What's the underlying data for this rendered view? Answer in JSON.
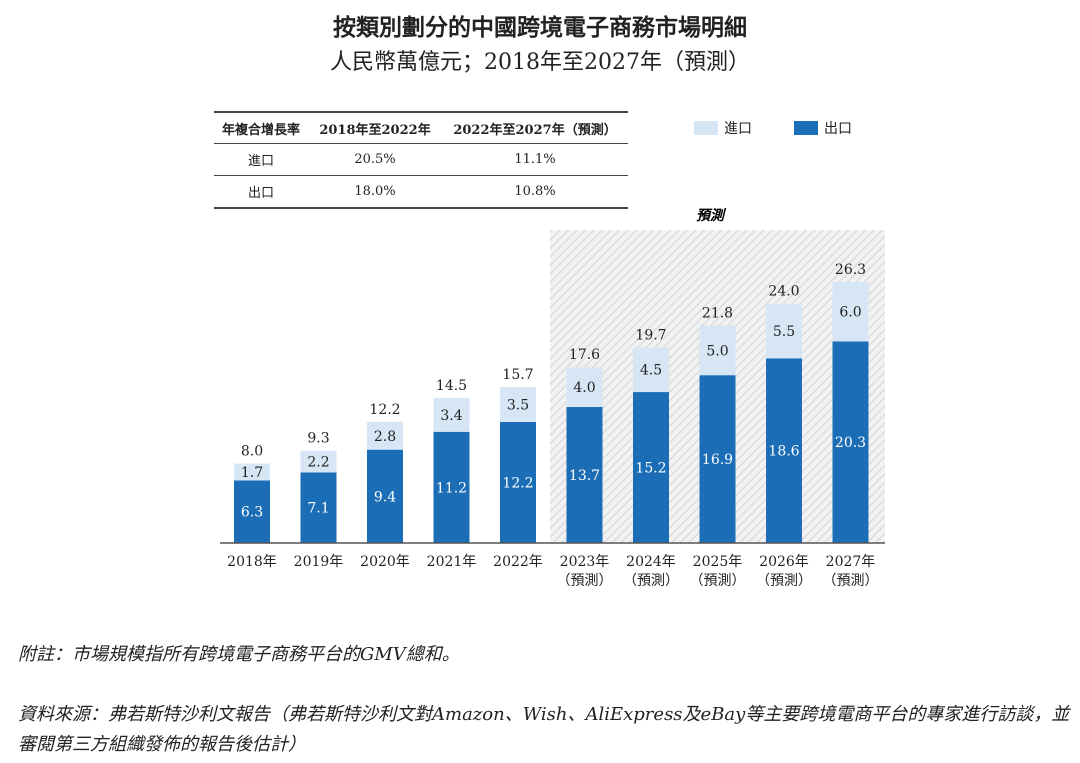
{
  "chart_data": {
    "type": "bar",
    "stacked": true,
    "title": "按類別劃分的中國跨境電子商務市場明細",
    "subtitle": "人民幣萬億元；2018年至2027年（預測）",
    "categories": [
      "2018年",
      "2019年",
      "2020年",
      "2021年",
      "2022年",
      "2023年",
      "2024年",
      "2025年",
      "2026年",
      "2027年"
    ],
    "forecast_tags": [
      "",
      "",
      "",
      "",
      "",
      "（預測）",
      "（預測）",
      "（預測）",
      "（預測）",
      "（預測）"
    ],
    "forecast_label": "預測",
    "series": [
      {
        "name": "出口",
        "color": "#1b6db5",
        "values": [
          6.3,
          7.1,
          9.4,
          11.2,
          12.2,
          13.7,
          15.2,
          16.9,
          18.6,
          20.3
        ]
      },
      {
        "name": "進口",
        "color": "#d7e6f4",
        "values": [
          1.7,
          2.2,
          2.8,
          3.4,
          3.5,
          4.0,
          4.5,
          5.0,
          5.5,
          6.0
        ]
      }
    ],
    "totals": [
      "8.0",
      "9.3",
      "12.2",
      "14.5",
      "15.7",
      "17.6",
      "19.7",
      "21.8",
      "24.0",
      "26.3"
    ],
    "cagr_table": {
      "headers": [
        "年複合增長率",
        "2018年至2022年",
        "2022年至2027年（預測）"
      ],
      "rows": [
        [
          "進口",
          "20.5%",
          "11.1%"
        ],
        [
          "出口",
          "18.0%",
          "10.8%"
        ]
      ]
    },
    "legend": [
      {
        "label": "進口",
        "color": "#d7e6f4"
      },
      {
        "label": "出口",
        "color": "#1b6db5"
      }
    ],
    "legend_placement": "top-right"
  },
  "notes": {
    "note": "附註：市場規模指所有跨境電子商務平台的GMV總和。",
    "source": "資料來源：弗若斯特沙利文報告（弗若斯特沙利文對Amazon、Wish、AliExpress及eBay等主要跨境電商平台的專家進行訪談，並審閱第三方組織發佈的報告後估計）"
  }
}
